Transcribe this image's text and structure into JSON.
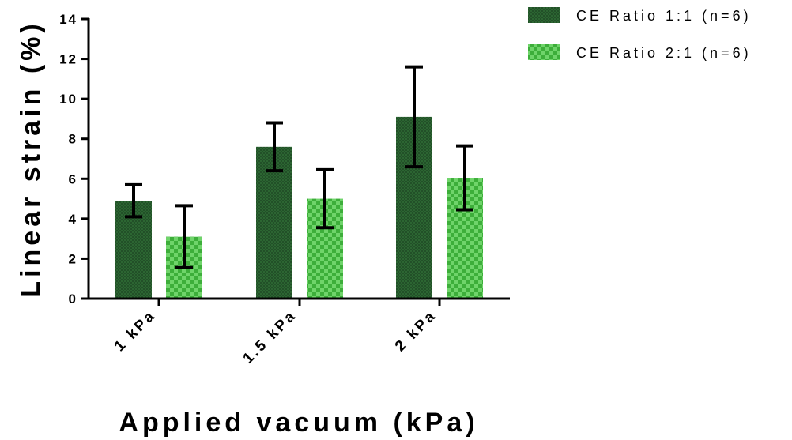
{
  "chart_data": {
    "type": "bar",
    "title": "",
    "xlabel": "Applied vacuum (kPa)",
    "ylabel": "Linear strain (%)",
    "ylim": [
      0,
      14
    ],
    "yticks": [
      "0",
      "2",
      "4",
      "6",
      "8",
      "10",
      "12",
      "14"
    ],
    "categories": [
      "1 kPa",
      "1.5 kPa",
      "2 kPa"
    ],
    "series": [
      {
        "name": "CE Ratio 1:1 (n=6)",
        "values": [
          4.9,
          7.6,
          9.1
        ],
        "error": [
          0.8,
          1.2,
          2.5
        ],
        "color": "#2e6b34",
        "pattern": "fine-crosshatch"
      },
      {
        "name": "CE Ratio 2:1 (n=6)",
        "values": [
          3.1,
          5.0,
          6.05
        ],
        "error": [
          1.55,
          1.45,
          1.6
        ],
        "color": "#4ec04a",
        "pattern": "checkerboard"
      }
    ],
    "grid": false,
    "legend": "top-right",
    "error_bars": true
  }
}
